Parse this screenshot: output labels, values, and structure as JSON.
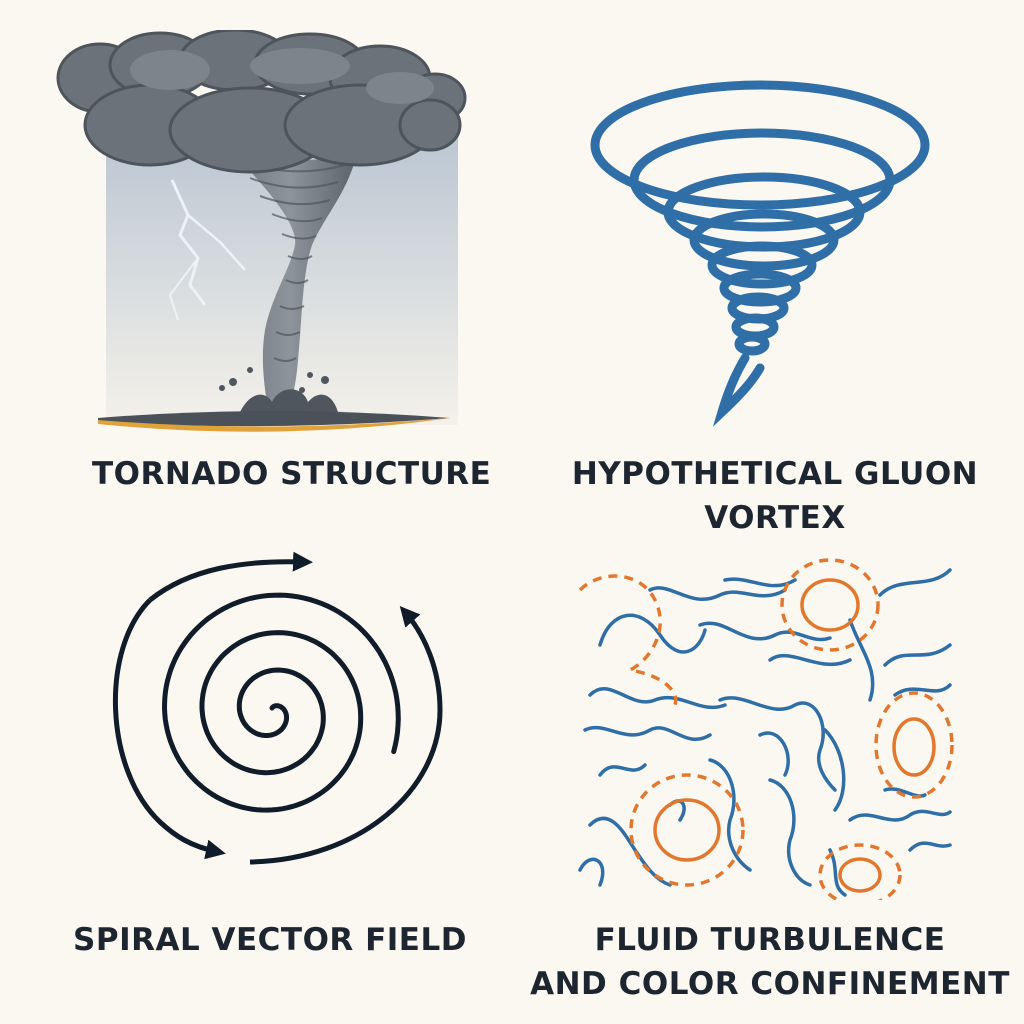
{
  "panels": [
    {
      "id": "tornado",
      "caption_lines": [
        "TORNADO STRUCTURE"
      ]
    },
    {
      "id": "gluon",
      "caption_lines": [
        "HYPOTHETICAL GLUON",
        "VORTEX"
      ]
    },
    {
      "id": "spiral",
      "caption_lines": [
        "SPIRAL VECTOR FIELD"
      ]
    },
    {
      "id": "turbulence",
      "caption_lines": [
        "FLUID TURBULENCE",
        "AND COLOR CONFINEMENT"
      ]
    }
  ],
  "colors": {
    "background": "#fbf8f2",
    "text": "#1c2530",
    "storm_gray": "#5f666e",
    "gluon_blue": "#2f6ea6",
    "spiral_navy": "#111c2a",
    "turbulence_blue": "#2f6ea6",
    "turbulence_orange": "#e2772e",
    "ground_orange": "#e0a23a"
  }
}
